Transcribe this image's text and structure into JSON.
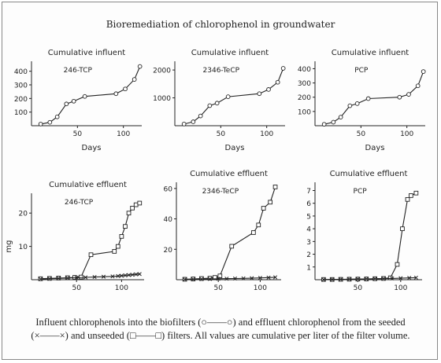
{
  "figure": {
    "title": "Bioremediation of chlorophenol in groundwater",
    "caption_line1": "Influent chlorophenols into the biofilters (○——○) and effluent chlorophenol from the seeded",
    "caption_line2": "(×——×) and unseeded (□——□) filters. All values are cumulative per liter of the filter volume."
  },
  "chart_data": [
    {
      "type": "line",
      "title": "Cumulative influent",
      "label": "246-TCP",
      "xlabel": "Days",
      "ylabel": "",
      "xlim": [
        0,
        120
      ],
      "ylim": [
        0,
        450
      ],
      "xticks": [
        50,
        100
      ],
      "yticks": [
        100,
        200,
        300,
        400
      ],
      "series": [
        {
          "marker": "circle",
          "x": [
            10,
            20,
            28,
            38,
            46,
            58,
            92,
            102,
            112,
            118
          ],
          "y": [
            12,
            25,
            65,
            160,
            180,
            215,
            235,
            270,
            340,
            435
          ]
        }
      ]
    },
    {
      "type": "line",
      "title": "Cumulative influent",
      "label": "2346-TeCP",
      "xlabel": "Days",
      "ylabel": "",
      "xlim": [
        0,
        120
      ],
      "ylim": [
        0,
        2200
      ],
      "xticks": [
        50,
        100
      ],
      "yticks": [
        1000,
        2000
      ],
      "series": [
        {
          "marker": "circle",
          "x": [
            10,
            20,
            28,
            38,
            46,
            58,
            92,
            102,
            112,
            118
          ],
          "y": [
            60,
            140,
            350,
            720,
            810,
            1040,
            1150,
            1300,
            1560,
            2060
          ]
        }
      ]
    },
    {
      "type": "line",
      "title": "Cumulative influent",
      "label": "PCP",
      "xlabel": "Days",
      "ylabel": "",
      "xlim": [
        0,
        120
      ],
      "ylim": [
        0,
        430
      ],
      "xticks": [
        50,
        100
      ],
      "yticks": [
        100,
        200,
        300,
        400
      ],
      "series": [
        {
          "marker": "circle",
          "x": [
            10,
            20,
            28,
            38,
            46,
            58,
            92,
            102,
            112,
            118
          ],
          "y": [
            10,
            25,
            60,
            140,
            155,
            190,
            200,
            220,
            280,
            380
          ]
        }
      ]
    },
    {
      "type": "line",
      "title": "Cumulative effluent",
      "label": "246-TCP",
      "xlabel": "",
      "ylabel": "mg",
      "xlim": [
        0,
        125
      ],
      "ylim": [
        0,
        25
      ],
      "xticks": [
        50,
        100
      ],
      "yticks": [
        10,
        20
      ],
      "series": [
        {
          "marker": "square",
          "x": [
            10,
            20,
            30,
            40,
            48,
            55,
            66,
            92,
            96,
            100,
            104,
            108,
            112,
            116,
            120
          ],
          "y": [
            0.3,
            0.4,
            0.5,
            0.6,
            0.7,
            0.8,
            7.5,
            8.5,
            10,
            13,
            16,
            20,
            21.5,
            22.5,
            23
          ]
        },
        {
          "marker": "x",
          "x": [
            10,
            20,
            30,
            40,
            50,
            60,
            70,
            80,
            90,
            96,
            100,
            104,
            108,
            112,
            116,
            120
          ],
          "y": [
            0.2,
            0.3,
            0.4,
            0.5,
            0.6,
            0.7,
            0.8,
            0.9,
            1.0,
            1.1,
            1.2,
            1.3,
            1.4,
            1.5,
            1.6,
            1.7
          ]
        }
      ]
    },
    {
      "type": "line",
      "title": "Cumulative effluent",
      "label": "2346-TeCP",
      "xlabel": "",
      "ylabel": "",
      "xlim": [
        0,
        125
      ],
      "ylim": [
        0,
        62
      ],
      "xticks": [
        50,
        100
      ],
      "yticks": [
        20,
        40,
        60
      ],
      "series": [
        {
          "marker": "square",
          "x": [
            10,
            20,
            30,
            40,
            46,
            52,
            66,
            92,
            98,
            104,
            112,
            118
          ],
          "y": [
            0.3,
            0.5,
            0.8,
            1.0,
            1.5,
            2.5,
            22,
            31,
            36,
            47,
            51,
            61
          ]
        },
        {
          "marker": "x",
          "x": [
            10,
            20,
            30,
            40,
            50,
            60,
            70,
            80,
            90,
            100,
            110,
            118
          ],
          "y": [
            0.2,
            0.3,
            0.4,
            0.5,
            0.6,
            0.7,
            0.8,
            0.9,
            1.0,
            1.2,
            1.4,
            1.6
          ]
        }
      ]
    },
    {
      "type": "line",
      "title": "Cumulative effluent",
      "label": "PCP",
      "xlabel": "",
      "ylabel": "",
      "xlim": [
        0,
        125
      ],
      "ylim": [
        0,
        7.4
      ],
      "xticks": [
        50,
        100
      ],
      "yticks": [
        1,
        2,
        3,
        4,
        5,
        6,
        7
      ],
      "series": [
        {
          "marker": "square",
          "x": [
            10,
            20,
            30,
            40,
            50,
            60,
            70,
            80,
            88,
            96,
            102,
            108,
            112,
            118
          ],
          "y": [
            0.02,
            0.02,
            0.03,
            0.04,
            0.05,
            0.06,
            0.08,
            0.1,
            0.15,
            1.2,
            4.0,
            6.3,
            6.6,
            6.8
          ]
        },
        {
          "marker": "x",
          "x": [
            10,
            20,
            30,
            40,
            50,
            60,
            70,
            80,
            90,
            100,
            110,
            118
          ],
          "y": [
            0.01,
            0.02,
            0.03,
            0.04,
            0.05,
            0.06,
            0.07,
            0.08,
            0.1,
            0.12,
            0.14,
            0.16
          ]
        }
      ]
    }
  ]
}
